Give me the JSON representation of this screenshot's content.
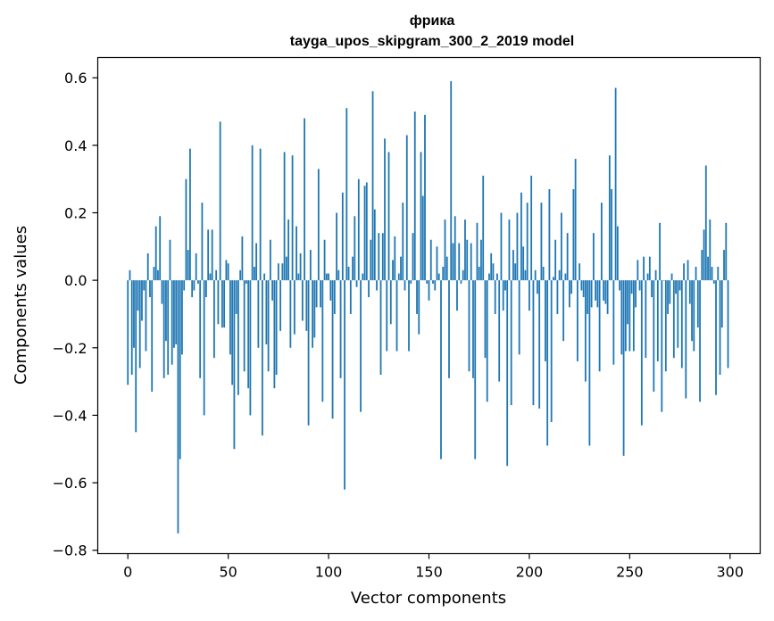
{
  "chart_data": {
    "type": "bar",
    "title": "фрика",
    "subtitle": "tayga_upos_skipgram_300_2_2019 model",
    "xlabel": "Vector components",
    "ylabel": "Components values",
    "xlim": [
      -15,
      315
    ],
    "ylim": [
      -0.81,
      0.66
    ],
    "xticks": [
      0,
      50,
      100,
      150,
      200,
      250,
      300
    ],
    "xtick_labels": [
      "0",
      "50",
      "100",
      "150",
      "200",
      "250",
      "300"
    ],
    "yticks": [
      -0.8,
      -0.6,
      -0.4,
      -0.2,
      0.0,
      0.2,
      0.4,
      0.6
    ],
    "ytick_labels": [
      "−0.8",
      "−0.6",
      "−0.4",
      "−0.2",
      "0.0",
      "0.2",
      "0.4",
      "0.6"
    ],
    "bar_color": "#1f77b4",
    "grid": false,
    "values": [
      -0.31,
      0.03,
      -0.28,
      -0.2,
      -0.45,
      -0.09,
      -0.26,
      -0.12,
      -0.03,
      -0.21,
      0.08,
      -0.05,
      -0.33,
      0.04,
      0.16,
      0.03,
      0.19,
      -0.07,
      -0.29,
      -0.18,
      -0.28,
      0.12,
      -0.25,
      -0.2,
      -0.19,
      -0.75,
      -0.53,
      -0.22,
      -0.03,
      0.3,
      0.09,
      0.39,
      -0.05,
      -0.03,
      0.08,
      -0.01,
      -0.29,
      0.23,
      -0.4,
      -0.05,
      0.15,
      0.02,
      0.15,
      -0.23,
      0.03,
      -0.13,
      0.47,
      -0.14,
      -0.14,
      0.06,
      0.05,
      -0.22,
      -0.31,
      -0.5,
      -0.1,
      -0.34,
      0.03,
      0.13,
      -0.27,
      -0.01,
      -0.32,
      -0.4,
      0.4,
      0.04,
      0.11,
      -0.2,
      0.39,
      -0.46,
      0.02,
      -0.19,
      -0.27,
      0.12,
      -0.06,
      -0.32,
      -0.28,
      0.05,
      -0.15,
      0.05,
      0.38,
      0.07,
      0.18,
      -0.2,
      0.37,
      -0.16,
      0.16,
      0.02,
      0.08,
      -0.12,
      0.48,
      -0.15,
      -0.43,
      0.09,
      -0.2,
      -0.17,
      -0.08,
      0.33,
      -0.08,
      -0.36,
      0.12,
      0.02,
      0.02,
      -0.06,
      -0.41,
      -0.1,
      0.2,
      0.03,
      -0.29,
      0.26,
      -0.62,
      0.51,
      0.04,
      -0.1,
      0.07,
      0.19,
      -0.02,
      0.3,
      -0.39,
      0.02,
      0.28,
      0.29,
      -0.05,
      0.12,
      0.56,
      0.21,
      -0.03,
      0.14,
      -0.28,
      0.14,
      0.42,
      -0.21,
      0.38,
      -0.13,
      0.06,
      0.13,
      -0.21,
      0.02,
      0.07,
      0.23,
      -0.03,
      0.43,
      -0.21,
      -0.01,
      0.14,
      0.5,
      -0.1,
      -0.16,
      0.38,
      0.25,
      0.49,
      -0.01,
      -0.06,
      0.12,
      -0.01,
      -0.03,
      0.1,
      0.02,
      -0.53,
      0.04,
      0.18,
      0.07,
      -0.29,
      0.59,
      0.11,
      0.19,
      -0.09,
      0.11,
      -0.01,
      0.03,
      0.18,
      0.12,
      -0.27,
      0.11,
      -0.29,
      -0.53,
      0.17,
      0.04,
      0.12,
      0.31,
      -0.23,
      -0.36,
      0.02,
      0.08,
      0.05,
      -0.1,
      0.02,
      -0.3,
      0.2,
      -0.09,
      -0.03,
      -0.55,
      0.18,
      -0.37,
      0.09,
      0.05,
      0.2,
      -0.22,
      0.26,
      0.1,
      0.03,
      0.23,
      -0.09,
      0.31,
      -0.37,
      0.03,
      -0.04,
      -0.38,
      0.23,
      0.04,
      -0.24,
      -0.49,
      0.27,
      -0.42,
      0.01,
      0.12,
      -0.1,
      0.03,
      0.2,
      -0.18,
      0.02,
      0.14,
      -0.08,
      -0.04,
      0.27,
      0.36,
      -0.24,
      0.05,
      -0.03,
      -0.05,
      -0.3,
      -0.1,
      -0.49,
      -0.08,
      0.14,
      -0.06,
      -0.08,
      -0.27,
      0.23,
      -0.06,
      -0.07,
      -0.1,
      0.37,
      0.27,
      -0.25,
      0.57,
      0.16,
      -0.03,
      -0.22,
      -0.52,
      -0.21,
      -0.13,
      -0.21,
      -0.04,
      -0.21,
      -0.08,
      0.06,
      -0.03,
      -0.43,
      0.07,
      -0.23,
      0.02,
      0.07,
      -0.05,
      -0.33,
      0.03,
      -0.24,
      0.17,
      -0.39,
      0.0,
      -0.27,
      -0.1,
      -0.07,
      0.02,
      -0.23,
      -0.04,
      -0.2,
      -0.03,
      -0.26,
      0.05,
      -0.35,
      0.06,
      -0.07,
      -0.18,
      -0.21,
      0.04,
      -0.14,
      -0.36,
      0.09,
      0.15,
      0.34,
      0.07,
      0.18,
      0.04,
      -0.01,
      -0.34,
      0.04,
      -0.28,
      -0.14,
      0.09,
      0.17,
      -0.26
    ]
  }
}
